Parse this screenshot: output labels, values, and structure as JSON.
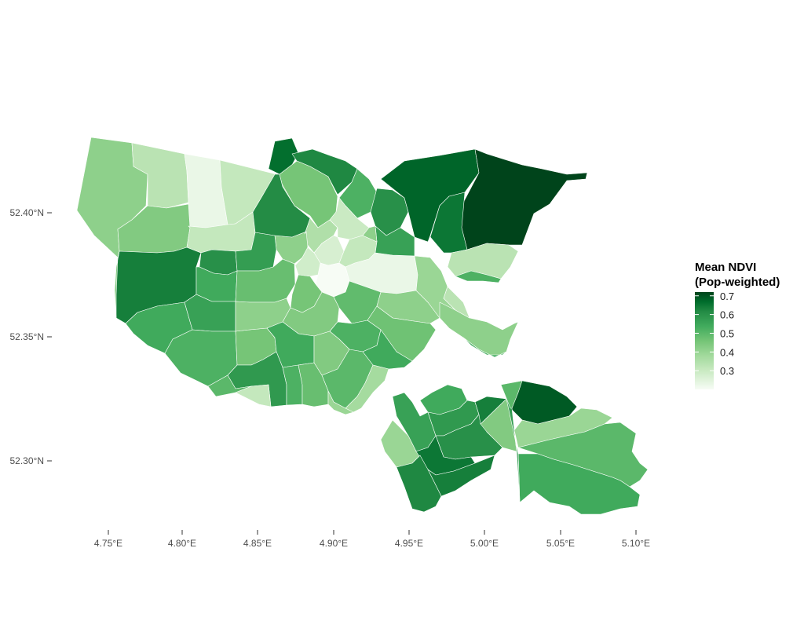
{
  "chart_data": {
    "type": "choropleth",
    "legend": {
      "title_line1": "Mean NDVI",
      "title_line2": "(Pop-weighted)",
      "ticks": [
        "0.7",
        "0.6",
        "0.5",
        "0.4",
        "0.3"
      ],
      "tick_values": [
        0.7,
        0.6,
        0.5,
        0.4,
        0.3
      ],
      "range": [
        0.2,
        0.72
      ],
      "placement": "right",
      "palette": [
        "#f7fcf5",
        "#c7e9c0",
        "#a1d99b",
        "#74c476",
        "#41ab5d",
        "#238b45",
        "#006d2c",
        "#00441b"
      ]
    },
    "x_axis": {
      "tick_labels": [
        "4.75°E",
        "4.80°E",
        "4.85°E",
        "4.90°E",
        "4.95°E",
        "5.00°E",
        "5.05°E",
        "5.10°E"
      ],
      "tick_values": [
        4.75,
        4.8,
        4.85,
        4.9,
        4.95,
        5.0,
        5.05,
        5.1
      ]
    },
    "y_axis": {
      "tick_labels": [
        "52.40°N",
        "52.35°N",
        "52.30°N"
      ],
      "tick_values": [
        52.4,
        52.35,
        52.3
      ]
    },
    "grid": false,
    "regions": [
      {
        "value": 0.38
      },
      {
        "value": 0.3
      },
      {
        "value": 0.22
      },
      {
        "value": 0.28
      },
      {
        "value": 0.4
      },
      {
        "value": 0.6
      },
      {
        "value": 0.5
      },
      {
        "value": 0.64
      },
      {
        "value": 0.58
      },
      {
        "value": 0.42
      },
      {
        "value": 0.48
      },
      {
        "value": 0.56
      },
      {
        "value": 0.66
      },
      {
        "value": 0.72
      },
      {
        "value": 0.62
      },
      {
        "value": 0.3
      },
      {
        "value": 0.36
      },
      {
        "value": 0.28
      },
      {
        "value": 0.32
      },
      {
        "value": 0.27
      },
      {
        "value": 0.38
      },
      {
        "value": 0.25
      },
      {
        "value": 0.2
      },
      {
        "value": 0.28
      },
      {
        "value": 0.22
      },
      {
        "value": 0.26
      },
      {
        "value": 0.3
      },
      {
        "value": 0.56
      },
      {
        "value": 0.5
      },
      {
        "value": 0.53
      },
      {
        "value": 0.52
      },
      {
        "value": 0.44
      },
      {
        "value": 0.48
      },
      {
        "value": 0.42
      },
      {
        "value": 0.38
      },
      {
        "value": 0.4
      },
      {
        "value": 0.5
      },
      {
        "value": 0.45
      },
      {
        "value": 0.38
      },
      {
        "value": 0.36
      },
      {
        "value": 0.48
      },
      {
        "value": 0.4
      },
      {
        "value": 0.43
      },
      {
        "value": 0.5
      },
      {
        "value": 0.46
      },
      {
        "value": 0.54
      },
      {
        "value": 0.48
      },
      {
        "value": 0.44
      },
      {
        "value": 0.46
      },
      {
        "value": 0.38
      },
      {
        "value": 0.3
      },
      {
        "value": 0.52
      },
      {
        "value": 0.36
      },
      {
        "value": 0.5
      },
      {
        "value": 0.54
      },
      {
        "value": 0.56
      },
      {
        "value": 0.4
      },
      {
        "value": 0.62
      },
      {
        "value": 0.6
      },
      {
        "value": 0.58
      },
      {
        "value": 0.68
      },
      {
        "value": 0.36
      },
      {
        "value": 0.46
      },
      {
        "value": 0.5
      },
      {
        "value": 0.53
      },
      {
        "value": 0.6
      },
      {
        "value": 0.57
      },
      {
        "value": 0.42
      },
      {
        "value": 0.34
      },
      {
        "value": 0.4
      },
      {
        "value": 0.5
      },
      {
        "value": 0.46
      },
      {
        "value": 0.48
      },
      {
        "value": 0.52
      },
      {
        "value": 0.38
      },
      {
        "value": 0.28
      },
      {
        "value": 0.36
      },
      {
        "value": 0.44
      }
    ]
  }
}
